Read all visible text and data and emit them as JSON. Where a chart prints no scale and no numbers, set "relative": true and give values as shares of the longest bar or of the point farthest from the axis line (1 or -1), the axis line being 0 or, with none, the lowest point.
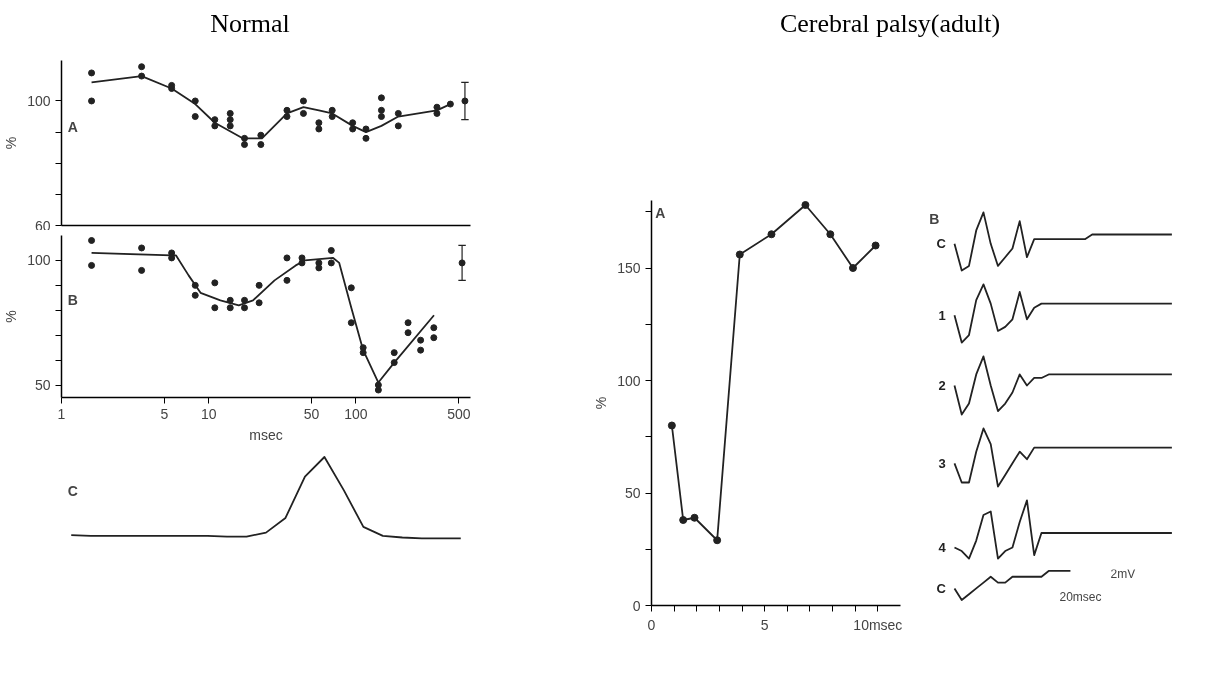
{
  "chart_data": [
    {
      "type": "scatter",
      "title": "Normal",
      "ylabel": "%",
      "annotations": [
        "A"
      ],
      "log": "x",
      "xlim": [
        1,
        600
      ],
      "ylim": [
        60,
        113
      ],
      "yticks": [
        60,
        {
          "value": 70,
          "label": null
        },
        {
          "value": 80,
          "label": null
        },
        {
          "value": 90,
          "label": null
        },
        100
      ],
      "tick_labels": "y",
      "marker": "circle",
      "series": [
        {
          "type": "scatter",
          "color": "#222222",
          "x": [
            1.6,
            1.6,
            3.5,
            3.5,
            5.6,
            5.6,
            8.1,
            8.1,
            11,
            11,
            14,
            14,
            14,
            17.5,
            17.5,
            22.6,
            22.6,
            34,
            34,
            44,
            44,
            56,
            56,
            69,
            69,
            95,
            95,
            117,
            117,
            149,
            149,
            149,
            194,
            194,
            355,
            355,
            438
          ],
          "values": [
            109,
            100,
            111,
            108,
            105,
            104,
            100,
            95,
            94,
            92,
            96,
            94,
            92,
            88,
            86,
            89,
            86,
            97,
            95,
            100,
            96,
            93,
            91,
            97,
            95,
            93,
            91,
            91,
            88,
            101,
            97,
            95,
            96,
            92,
            98,
            96,
            99
          ]
        },
        {
          "type": "scatter",
          "color": "#222222",
          "x": [
            550
          ],
          "values": [
            100
          ],
          "errors": [
            [
              94,
              106
            ]
          ]
        },
        {
          "type": "line",
          "marker": "none",
          "color": "#222222",
          "x": [
            1.6,
            3.5,
            5.6,
            8.1,
            11,
            17,
            23,
            34,
            44,
            56,
            69,
            95,
            117,
            149,
            194,
            355,
            438
          ],
          "values": [
            106,
            108,
            104,
            99,
            93,
            88,
            88,
            96,
            98,
            97,
            96,
            92,
            90,
            92,
            95,
            97,
            99
          ]
        }
      ]
    },
    {
      "type": "scatter",
      "ylabel": "%",
      "xlabel": "msec",
      "annotations": [
        "B"
      ],
      "log": "x",
      "xlim": [
        1,
        600
      ],
      "xticks": [
        1,
        5,
        10,
        50,
        100,
        500
      ],
      "ylim": [
        45,
        110
      ],
      "yticks": [
        50,
        {
          "value": 60,
          "label": null
        },
        {
          "value": 70,
          "label": null
        },
        {
          "value": 80,
          "label": null
        },
        {
          "value": 90,
          "label": null
        },
        100
      ],
      "marker": "circle",
      "series": [
        {
          "type": "scatter",
          "color": "#222222",
          "x": [
            1.6,
            1.6,
            3.5,
            3.5,
            5.6,
            5.6,
            8.1,
            8.1,
            11,
            11,
            14,
            14,
            17.5,
            17.5,
            22,
            22,
            34,
            34,
            43,
            43,
            56,
            56,
            68,
            68,
            93,
            93,
            112,
            112,
            142,
            142,
            182,
            182,
            226,
            226,
            275,
            275,
            338,
            338
          ],
          "values": [
            108,
            98,
            105,
            96,
            103,
            101,
            90,
            86,
            91,
            81,
            84,
            81,
            84,
            81,
            90,
            83,
            101,
            92,
            101,
            99,
            99,
            97,
            104,
            99,
            89,
            75,
            65,
            63,
            50,
            48,
            63,
            59,
            75,
            71,
            68,
            64,
            73,
            69
          ]
        },
        {
          "type": "scatter",
          "color": "#222222",
          "x": [
            526
          ],
          "values": [
            99
          ],
          "errors": [
            [
              92,
              106
            ]
          ]
        },
        {
          "type": "line",
          "marker": "none",
          "color": "#222222",
          "x": [
            1.6,
            5.6,
            6.0,
            7.3,
            8.8,
            12,
            16,
            20,
            28,
            39,
            45,
            70,
            77,
            93,
            112,
            142,
            182,
            339
          ],
          "values": [
            103,
            102,
            102,
            94,
            87,
            84,
            82,
            84,
            92,
            98,
            100,
            101,
            99,
            81,
            64,
            51,
            59,
            78
          ]
        }
      ]
    },
    {
      "type": "line",
      "relative": true,
      "annotations": [
        "C"
      ],
      "tick_labels": false,
      "categories": [
        null,
        null,
        null,
        null,
        null,
        null,
        null,
        null,
        null,
        null,
        null,
        null,
        null,
        null,
        null,
        null,
        null,
        null,
        null,
        null,
        null
      ],
      "series": [
        {
          "color": "#222222",
          "values": [
            0.04,
            0.03,
            0.03,
            0.03,
            0.03,
            0.03,
            0.03,
            0.03,
            0.02,
            0.02,
            0.07,
            0.25,
            0.76,
            1,
            0.59,
            0.14,
            0.03,
            0.01,
            0,
            0,
            0
          ]
        }
      ]
    },
    {
      "type": "line",
      "title": "Cerebral palsy(adult)",
      "ylabel": "%",
      "annotations": [
        "A"
      ],
      "xlim": [
        0,
        11
      ],
      "xticks": [
        0,
        {
          "value": 1,
          "label": null
        },
        {
          "value": 2,
          "label": null
        },
        {
          "value": 3,
          "label": null
        },
        {
          "value": 4,
          "label": null
        },
        5,
        {
          "value": 6,
          "label": null
        },
        {
          "value": 7,
          "label": null
        },
        {
          "value": 8,
          "label": null
        },
        {
          "value": 9,
          "label": null
        },
        {
          "value": 10,
          "label": "10msec"
        }
      ],
      "ylim": [
        0,
        180
      ],
      "yticks": [
        0,
        {
          "value": 25,
          "label": null
        },
        50,
        {
          "value": 75,
          "label": null
        },
        100,
        {
          "value": 125,
          "label": null
        },
        150,
        {
          "value": 175,
          "label": null
        }
      ],
      "marker": "circle",
      "series": [
        {
          "color": "#222222",
          "x": [
            0.9,
            1.4,
            1.9,
            2.9,
            3.9,
            5.3,
            6.8,
            7.9,
            8.9,
            9.9
          ],
          "values": [
            80,
            38,
            39,
            29,
            156,
            165,
            178,
            165,
            150,
            160
          ]
        }
      ]
    },
    {
      "type": "line",
      "relative": true,
      "tick_labels": false,
      "annotations": [
        "B"
      ],
      "categories": [
        null,
        null,
        null,
        null,
        null,
        null,
        null,
        null,
        null,
        null,
        null,
        null,
        null,
        null,
        null,
        null,
        null,
        null,
        null,
        null,
        null,
        null,
        null,
        null,
        null,
        null,
        null,
        null,
        null,
        null,
        null
      ],
      "series": [
        {
          "name": "C",
          "color": "#222222",
          "values": [
            0.46,
            0,
            0.08,
            0.69,
            1,
            0.46,
            0.08,
            0.23,
            0.38,
            0.85,
            0.23,
            0.54,
            0.54,
            0.54,
            0.54,
            0.54,
            0.54,
            0.54,
            0.54,
            0.62,
            0.62,
            0.62,
            0.62,
            0.62,
            0.62,
            0.62,
            0.62,
            0.62,
            0.62,
            0.62,
            0.62
          ]
        }
      ]
    },
    {
      "type": "line",
      "relative": true,
      "tick_labels": false,
      "categories": [
        null,
        null,
        null,
        null,
        null,
        null,
        null,
        null,
        null,
        null,
        null,
        null,
        null,
        null,
        null,
        null,
        null,
        null,
        null,
        null,
        null,
        null,
        null,
        null,
        null,
        null,
        null,
        null,
        null,
        null,
        null
      ],
      "series": [
        {
          "name": "1",
          "color": "#222222",
          "values": [
            0.47,
            0,
            0.13,
            0.73,
            1,
            0.67,
            0.2,
            0.27,
            0.4,
            0.87,
            0.4,
            0.6,
            0.67,
            0.67,
            0.67,
            0.67,
            0.67,
            0.67,
            0.67,
            0.67,
            0.67,
            0.67,
            0.67,
            0.67,
            0.67,
            0.67,
            0.67,
            0.67,
            0.67,
            0.67,
            0.67
          ]
        }
      ]
    },
    {
      "type": "line",
      "relative": true,
      "tick_labels": false,
      "categories": [
        null,
        null,
        null,
        null,
        null,
        null,
        null,
        null,
        null,
        null,
        null,
        null,
        null,
        null,
        null,
        null,
        null,
        null,
        null,
        null,
        null,
        null,
        null,
        null,
        null,
        null,
        null,
        null,
        null,
        null,
        null
      ],
      "series": [
        {
          "name": "2",
          "color": "#222222",
          "values": [
            0.5,
            0,
            0.19,
            0.69,
            1,
            0.5,
            0.06,
            0.19,
            0.38,
            0.69,
            0.5,
            0.63,
            0.63,
            0.69,
            0.69,
            0.69,
            0.69,
            0.69,
            0.69,
            0.69,
            0.69,
            0.69,
            0.69,
            0.69,
            0.69,
            0.69,
            0.69,
            0.69,
            0.69,
            0.69,
            0.69
          ]
        }
      ]
    },
    {
      "type": "line",
      "relative": true,
      "tick_labels": false,
      "categories": [
        null,
        null,
        null,
        null,
        null,
        null,
        null,
        null,
        null,
        null,
        null,
        null,
        null,
        null,
        null,
        null,
        null,
        null,
        null,
        null,
        null,
        null,
        null,
        null,
        null,
        null,
        null,
        null,
        null,
        null,
        null
      ],
      "series": [
        {
          "name": "3",
          "color": "#222222",
          "values": [
            0.4,
            0.07,
            0.07,
            0.6,
            1,
            0.73,
            0,
            0.2,
            0.4,
            0.6,
            0.47,
            0.67,
            0.67,
            0.67,
            0.67,
            0.67,
            0.67,
            0.67,
            0.67,
            0.67,
            0.67,
            0.67,
            0.67,
            0.67,
            0.67,
            0.67,
            0.67,
            0.67,
            0.67,
            0.67,
            0.67
          ]
        }
      ]
    },
    {
      "type": "line",
      "relative": true,
      "tick_labels": false,
      "categories": [
        null,
        null,
        null,
        null,
        null,
        null,
        null,
        null,
        null,
        null,
        null,
        null,
        null,
        null,
        null,
        null,
        null,
        null,
        null,
        null,
        null,
        null,
        null,
        null,
        null,
        null,
        null,
        null,
        null,
        null,
        null
      ],
      "series": [
        {
          "name": "4",
          "color": "#222222",
          "values": [
            0.19,
            0.13,
            0,
            0.31,
            0.75,
            0.81,
            0,
            0.13,
            0.19,
            0.63,
            1,
            0.06,
            0.44,
            0.44,
            0.44,
            0.44,
            0.44,
            0.44,
            0.44,
            0.44,
            0.44,
            0.44,
            0.44,
            0.44,
            0.44,
            0.44,
            0.44,
            0.44,
            0.44,
            0.44,
            0.44
          ]
        }
      ]
    },
    {
      "type": "line",
      "relative": true,
      "tick_labels": false,
      "annotations": [
        "2mV",
        "20msec"
      ],
      "categories": [
        null,
        null,
        null,
        null,
        null,
        null,
        null,
        null,
        null,
        null,
        null,
        null,
        null,
        null,
        null,
        null,
        null,
        null,
        null,
        null,
        null,
        null,
        null,
        null,
        null,
        null,
        null,
        null,
        null,
        null,
        null
      ],
      "series": [
        {
          "name": "C",
          "color": "#222222",
          "values": [
            0.4,
            0,
            0.2,
            0.4,
            0.6,
            0.8,
            0.6,
            0.6,
            0.8,
            0.8,
            0.8,
            0.8,
            0.8,
            1,
            1,
            1,
            1,
            null,
            null,
            null,
            null,
            null,
            null,
            null,
            null,
            null,
            null,
            null,
            null,
            null,
            null
          ]
        }
      ]
    }
  ]
}
